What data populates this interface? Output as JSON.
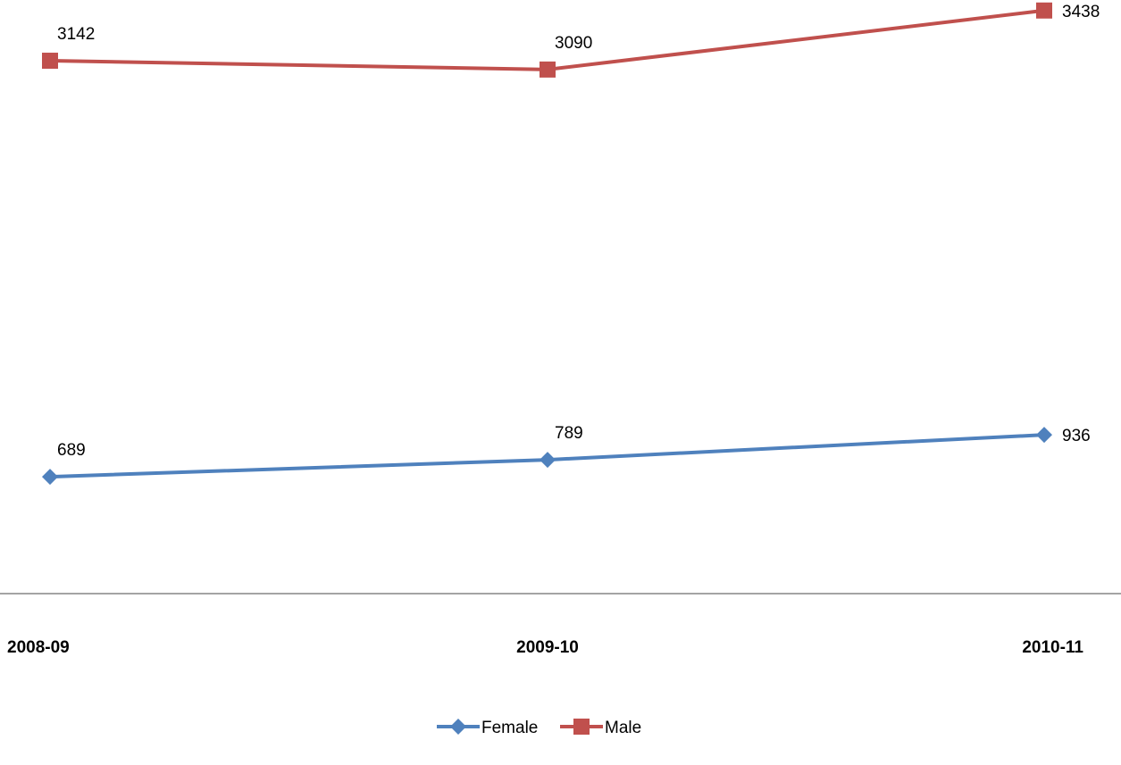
{
  "chart_data": {
    "type": "line",
    "title": "",
    "xlabel": "",
    "ylabel": "",
    "categories": [
      "2008-09",
      "2009-10",
      "2010-11"
    ],
    "series": [
      {
        "name": "Female",
        "values": [
          689,
          789,
          936
        ],
        "color": "#4f81bd",
        "marker": "diamond"
      },
      {
        "name": "Male",
        "values": [
          3142,
          3090,
          3438
        ],
        "color": "#c0504d",
        "marker": "square"
      }
    ],
    "ylim": [
      0,
      3500
    ],
    "grid": false,
    "data_labels": true,
    "legend_position": "bottom"
  }
}
